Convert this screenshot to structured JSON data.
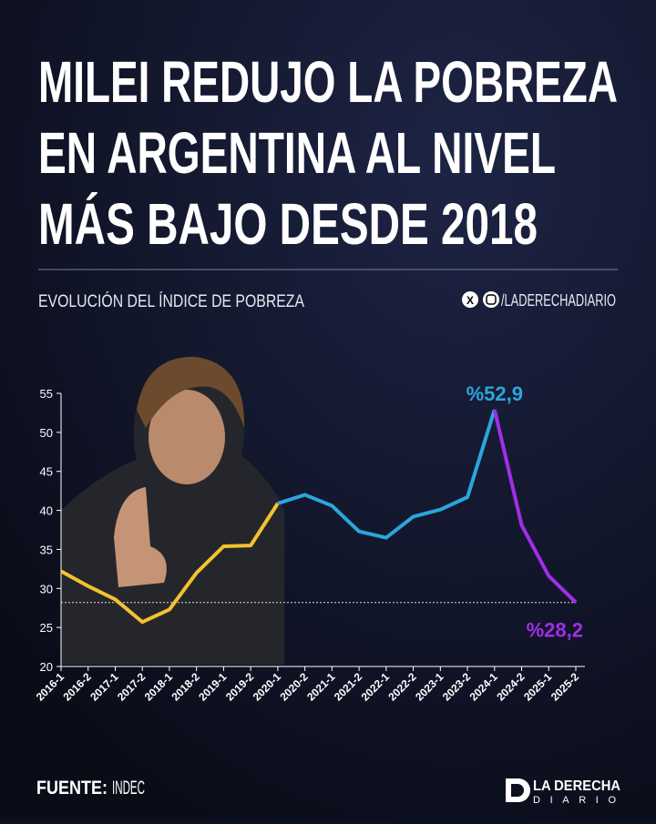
{
  "header": {
    "title_lines": [
      "MILEI REDUJO LA POBREZA",
      "EN ARGENTINA AL NIVEL",
      "MÁS BAJO DESDE 2018"
    ],
    "subtitle": "EVOLUCIÓN DEL ÍNDICE DE POBREZA",
    "handle": "/LADERECHADIARIO"
  },
  "chart_data": {
    "type": "line",
    "categories": [
      "2016-1",
      "2016-2",
      "2017-1",
      "2017-2",
      "2018-1",
      "2018-2",
      "2019-1",
      "2019-2",
      "2020-1",
      "2020-2",
      "2021-1",
      "2021-2",
      "2022-1",
      "2022-2",
      "2023-1",
      "2023-2",
      "2024-1",
      "2024-2",
      "2025-1",
      "2025-2"
    ],
    "series": [
      {
        "color": "#f2c230",
        "values": [
          32.2,
          30.3,
          28.6,
          25.7,
          27.3,
          32.0,
          35.4,
          35.5,
          40.9,
          null,
          null,
          null,
          null,
          null,
          null,
          null,
          null,
          null,
          null,
          null
        ]
      },
      {
        "color": "#2ba6dc",
        "values": [
          null,
          null,
          null,
          null,
          null,
          null,
          null,
          null,
          40.9,
          42.0,
          40.6,
          37.3,
          36.5,
          39.2,
          40.1,
          41.7,
          52.9,
          null,
          null,
          null
        ],
        "value_labels": [
          null,
          null,
          null,
          null,
          null,
          null,
          null,
          null,
          null,
          null,
          null,
          null,
          null,
          null,
          null,
          null,
          "%52,9",
          null,
          null,
          null
        ]
      },
      {
        "color": "#a12ee6",
        "values": [
          null,
          null,
          null,
          null,
          null,
          null,
          null,
          null,
          null,
          null,
          null,
          null,
          null,
          null,
          null,
          null,
          52.9,
          38.1,
          31.6,
          28.2
        ],
        "value_labels": [
          null,
          null,
          null,
          null,
          null,
          null,
          null,
          null,
          null,
          null,
          null,
          null,
          null,
          null,
          null,
          null,
          null,
          null,
          null,
          "%28,2"
        ]
      }
    ],
    "reference_value": 28.2,
    "ylim": [
      20,
      55
    ],
    "yticks": [
      20,
      25,
      30,
      35,
      40,
      45,
      50,
      55
    ]
  },
  "footer": {
    "source_label": "FUENTE:",
    "source": "INDEC",
    "logo_top": "LA DERECHA",
    "logo_bottom": "DIARIO"
  }
}
